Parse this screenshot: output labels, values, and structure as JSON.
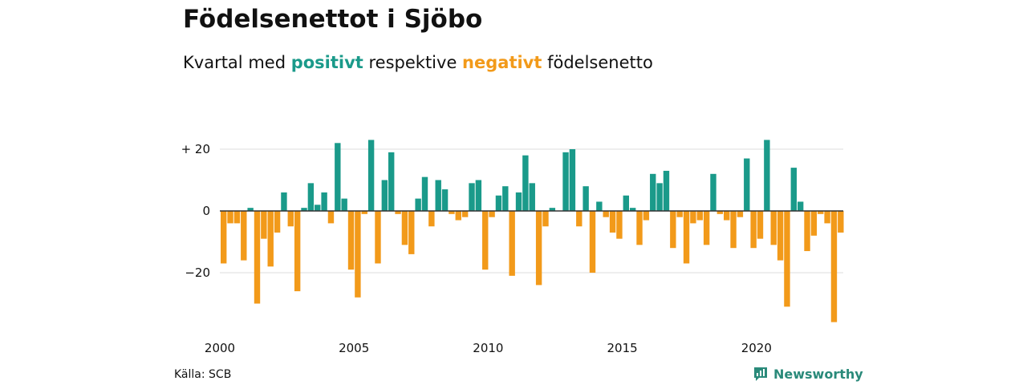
{
  "title": "Födelsenettot i Sjöbo",
  "subtitle": {
    "prefix": "Kvartal med ",
    "positive_word": "positivt",
    "middle": " respektive ",
    "negative_word": "negativt",
    "suffix": " födelsenetto"
  },
  "source": "Källa: SCB",
  "brand": {
    "name": "Newsworthy",
    "icon": "newsworthy-logo-icon"
  },
  "colors": {
    "positive": "#1a9a8a",
    "negative": "#f29a1a",
    "grid": "#dddddd",
    "axis": "#333333"
  },
  "chart_data": {
    "type": "bar",
    "start_quarter": "2000Q1",
    "values": [
      -17,
      -4,
      -4,
      -16,
      1,
      -30,
      -9,
      -18,
      -7,
      6,
      -5,
      -26,
      1,
      9,
      2,
      6,
      -4,
      22,
      4,
      -19,
      -28,
      -1,
      23,
      -17,
      10,
      19,
      -1,
      -11,
      -14,
      4,
      11,
      -5,
      10,
      7,
      -1,
      -3,
      -2,
      9,
      10,
      -19,
      -2,
      5,
      8,
      -21,
      6,
      18,
      9,
      -24,
      -5,
      1,
      0,
      19,
      20,
      -5,
      8,
      -20,
      3,
      -2,
      -7,
      -9,
      5,
      1,
      -11,
      -3,
      12,
      9,
      13,
      -12,
      -2,
      -17,
      -4,
      -3,
      -11,
      12,
      -1,
      -3,
      -12,
      -2,
      17,
      -12,
      -9,
      23,
      -11,
      -16,
      -31,
      14,
      3,
      -13,
      -8,
      -1,
      -4,
      -36,
      -7
    ],
    "x_ticks": [
      "2000",
      "2005",
      "2010",
      "2015",
      "2020"
    ],
    "y_ticks": [
      {
        "value": 20,
        "label": "+ 20"
      },
      {
        "value": 0,
        "label": "0"
      },
      {
        "value": -20,
        "label": "−20"
      }
    ],
    "ylim": [
      -36,
      23
    ],
    "grid": true
  }
}
